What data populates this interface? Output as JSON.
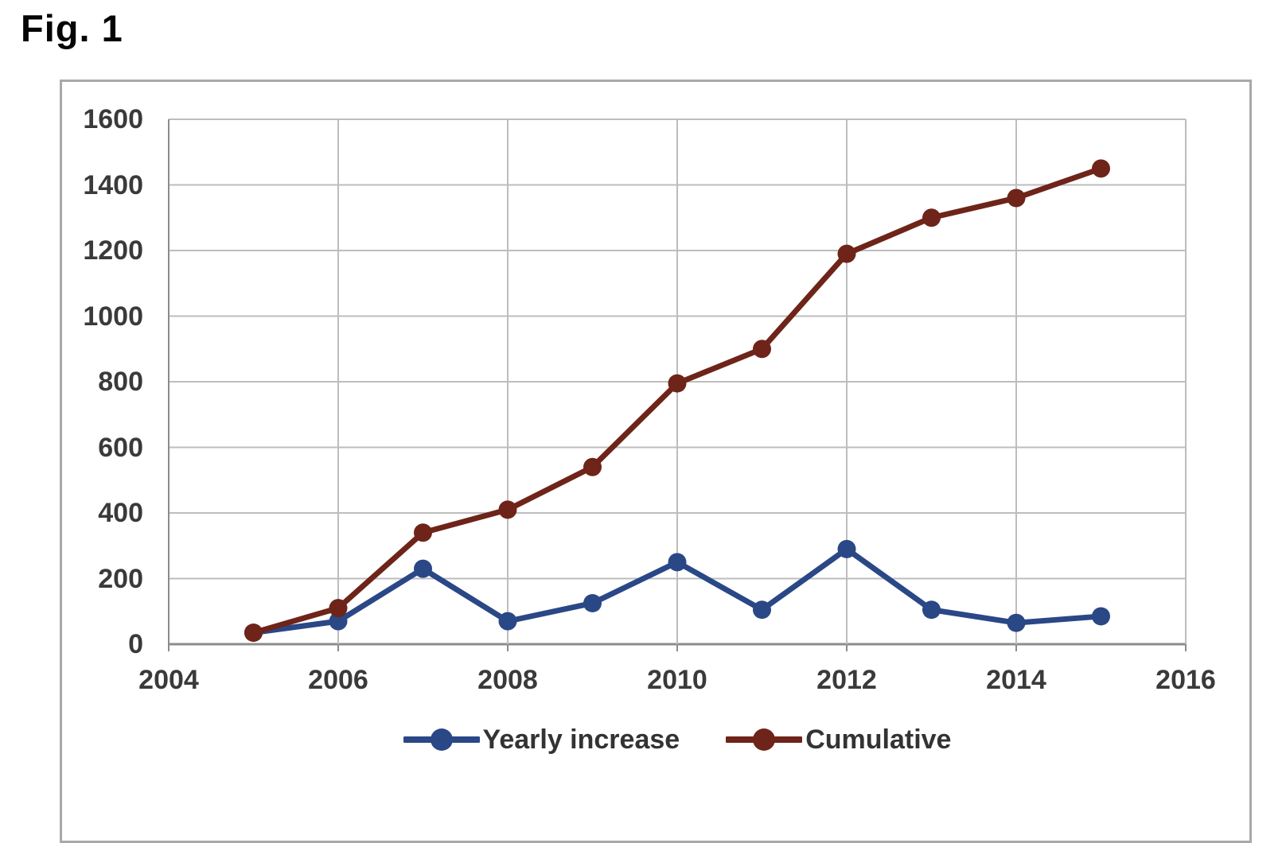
{
  "title": "Fig. 1",
  "colors": {
    "grid": "#bdbdbd",
    "axis": "#8c8c8c",
    "outer_border": "#a9a9a9",
    "tick_text": "#3a3a3a",
    "series_yearly": "#2a4786",
    "series_cumulative": "#6e2419"
  },
  "chart_data": {
    "type": "line",
    "title": "Fig. 1",
    "xlabel": "",
    "ylabel": "",
    "x": [
      2005,
      2006,
      2007,
      2008,
      2009,
      2010,
      2011,
      2012,
      2013,
      2014,
      2015
    ],
    "series": [
      {
        "name": "Yearly increase",
        "color": "#2a4786",
        "values": [
          35,
          70,
          230,
          70,
          125,
          250,
          105,
          290,
          105,
          65,
          85
        ]
      },
      {
        "name": "Cumulative",
        "color": "#6e2419",
        "values": [
          35,
          110,
          340,
          410,
          540,
          795,
          900,
          1190,
          1300,
          1360,
          1450
        ]
      }
    ],
    "xlim": [
      2004,
      2016
    ],
    "ylim": [
      0,
      1600
    ],
    "x_ticks": [
      2004,
      2006,
      2008,
      2010,
      2012,
      2014,
      2016
    ],
    "y_ticks": [
      0,
      200,
      400,
      600,
      800,
      1000,
      1200,
      1400,
      1600
    ],
    "grid": true,
    "legend_position": "bottom-center",
    "marker": "circle"
  }
}
